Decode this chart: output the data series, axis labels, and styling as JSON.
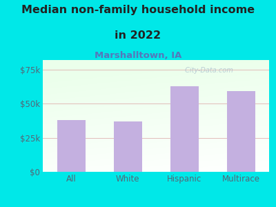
{
  "title_line1": "Median non-family household income",
  "title_line2": "in 2022",
  "subtitle": "Marshalltown, IA",
  "categories": [
    "All",
    "White",
    "Hispanic",
    "Multirace"
  ],
  "values": [
    38000,
    37000,
    63000,
    59000
  ],
  "bar_color": "#c4b0e0",
  "bar_edge_color": "#b8a8d8",
  "background_color": "#00e8e8",
  "plot_bg_left_color": "#cce8cc",
  "plot_bg_right_color": "#f0fff0",
  "plot_bg_bottom_color": "#ffffff",
  "title_color": "#222222",
  "subtitle_color": "#5577bb",
  "tick_label_color": "#556677",
  "ytick_labels": [
    "$0",
    "$25k",
    "$50k",
    "$75k"
  ],
  "ytick_values": [
    0,
    25000,
    50000,
    75000
  ],
  "ylim": [
    0,
    82000
  ],
  "grid_color": "#ddaaaa",
  "watermark": " City-Data.com",
  "title_fontsize": 11.5,
  "subtitle_fontsize": 9.5,
  "tick_fontsize": 8.5
}
